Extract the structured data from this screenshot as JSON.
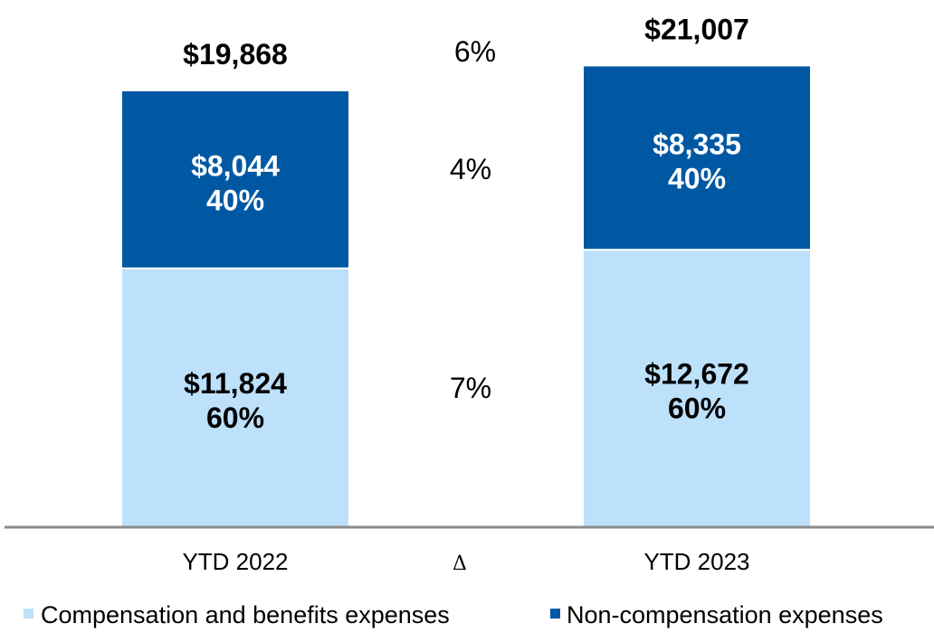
{
  "chart_data": {
    "type": "bar",
    "stacked": true,
    "categories": [
      "YTD 2022",
      "YTD 2023"
    ],
    "series": [
      {
        "name": "Compensation and benefits expenses",
        "values": [
          11824,
          12672
        ],
        "shares": [
          "60%",
          "60%"
        ],
        "value_labels": [
          "$11,824",
          "$12,672"
        ],
        "color": "#BDE0FB"
      },
      {
        "name": "Non-compensation expenses",
        "values": [
          8044,
          8335
        ],
        "shares": [
          "40%",
          "40%"
        ],
        "value_labels": [
          "$8,044",
          "$8,335"
        ],
        "color": "#0058A3"
      }
    ],
    "totals": [
      19868,
      21007
    ],
    "total_labels": [
      "$19,868",
      "$21,007"
    ],
    "delta": {
      "label": "Δ",
      "total": "6%",
      "non_compensation": "4%",
      "compensation": "7%"
    },
    "legend": "bottom",
    "grid": false,
    "axis_color": "#8C8C8C"
  }
}
